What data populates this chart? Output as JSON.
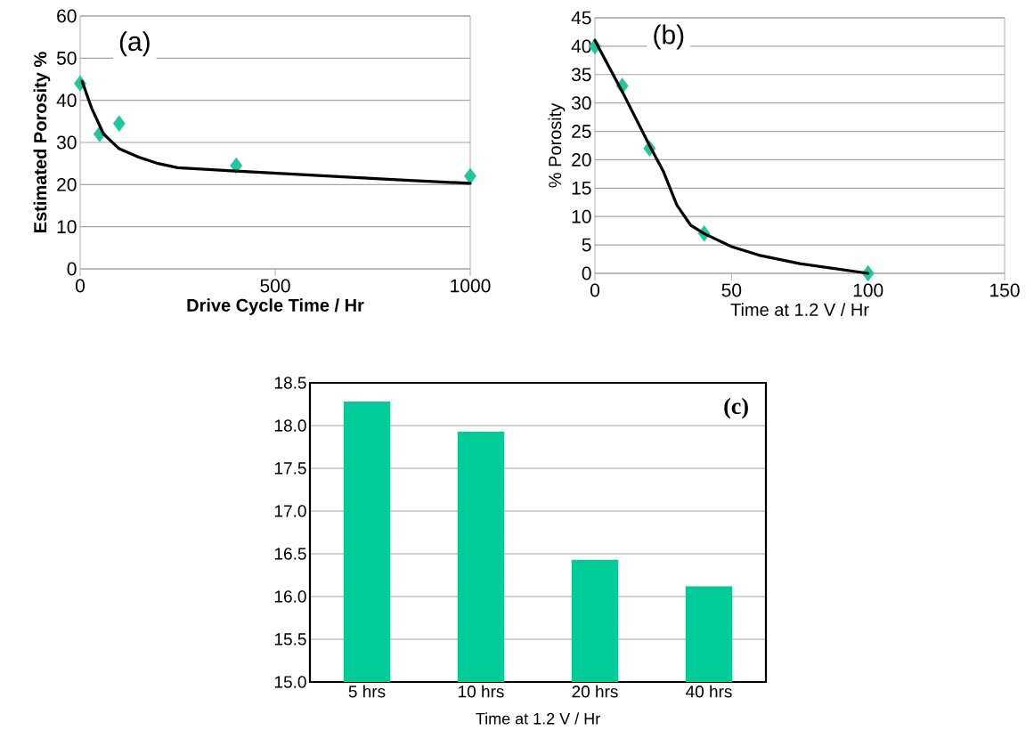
{
  "chart_data": [
    {
      "type": "scatter",
      "xlabel": "Drive Cycle Time / Hr",
      "ylabel": "Estimated Porosity %",
      "annotations": [
        "(a)"
      ],
      "xlim": [
        0,
        1000
      ],
      "xticks": [
        0,
        500,
        1000
      ],
      "ylim": [
        0,
        60
      ],
      "yticks": [
        0,
        10,
        20,
        30,
        40,
        50,
        60
      ],
      "grid": "y",
      "series": [
        {
          "type": "scatter",
          "marker": "diamond",
          "color": "#1fc79a",
          "x": [
            0,
            50,
            100,
            400,
            1000
          ],
          "values": [
            44,
            32,
            34.5,
            24.5,
            22
          ]
        },
        {
          "type": "line",
          "color": "#000000",
          "x": [
            5,
            30,
            60,
            100,
            150,
            200,
            250,
            400,
            600,
            800,
            1000
          ],
          "values": [
            44.5,
            38,
            32,
            28.5,
            26.5,
            25,
            24,
            23.2,
            22.2,
            21.2,
            20.3
          ]
        }
      ]
    },
    {
      "type": "scatter",
      "xlabel": "Time at 1.2 V / Hr",
      "ylabel": "% Porosity",
      "annotations": [
        "(b)"
      ],
      "xlim": [
        0,
        150
      ],
      "xticks": [
        0,
        50,
        100,
        150
      ],
      "ylim": [
        0,
        45
      ],
      "yticks": [
        0,
        5,
        10,
        15,
        20,
        25,
        30,
        35,
        40,
        45
      ],
      "grid": "y",
      "series": [
        {
          "type": "scatter",
          "marker": "diamond",
          "color": "#1fc79a",
          "x": [
            0,
            10,
            20,
            40,
            100
          ],
          "values": [
            40,
            33,
            22,
            7,
            0
          ]
        },
        {
          "type": "line",
          "color": "#000000",
          "x": [
            0,
            10,
            20,
            25,
            30,
            35,
            40,
            50,
            60,
            75,
            100
          ],
          "values": [
            41,
            32,
            22.5,
            18,
            12,
            8.5,
            7,
            4.7,
            3.2,
            1.7,
            0
          ]
        }
      ]
    },
    {
      "type": "bar",
      "xlabel": "Time at 1.2 V / Hr",
      "annotations": [
        "(c)"
      ],
      "categories": [
        "5 hrs",
        "10 hrs",
        "20 hrs",
        "40 hrs"
      ],
      "values": [
        18.28,
        17.93,
        16.43,
        16.12
      ],
      "color": "#00cc99",
      "ylim": [
        15,
        18.5
      ],
      "yticks": [
        {
          "value": 15,
          "label": "15.0"
        },
        {
          "value": 15.5,
          "label": "15.5"
        },
        {
          "value": 16,
          "label": "16.0"
        },
        {
          "value": 16.5,
          "label": "16.5"
        },
        {
          "value": 17,
          "label": "17.0"
        },
        {
          "value": 17.5,
          "label": "17.5"
        },
        {
          "value": 18,
          "label": "18.0"
        },
        {
          "value": 18.5,
          "label": "18.5"
        }
      ],
      "grid": "y"
    }
  ]
}
